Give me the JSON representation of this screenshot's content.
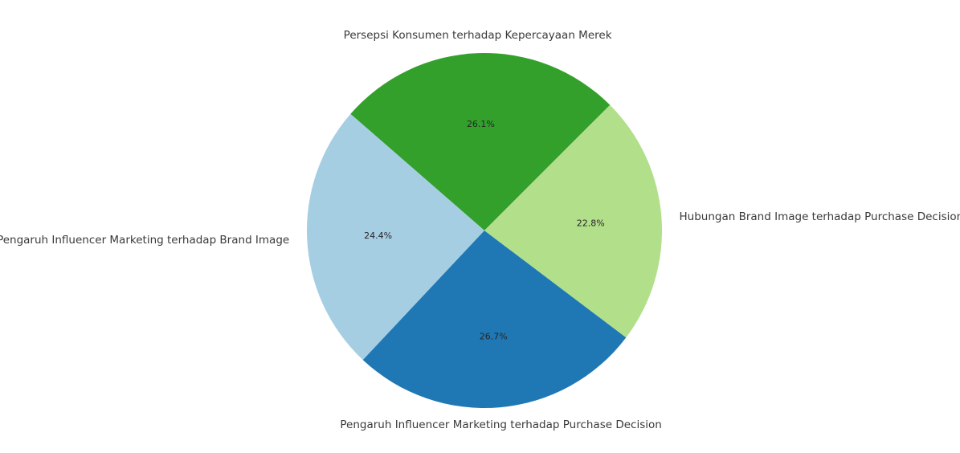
{
  "chart_data": {
    "type": "pie",
    "title": "",
    "slices": [
      {
        "label": "Persepsi Konsumen terhadap Kepercayaan Merek",
        "value": 26.1,
        "pct_label": "26.1%",
        "color": "#33a02c"
      },
      {
        "label": "Pengaruh Influencer Marketing terhadap Brand Image",
        "value": 24.4,
        "pct_label": "24.4%",
        "color": "#a6cee3"
      },
      {
        "label": "Pengaruh Influencer Marketing terhadap Purchase Decision",
        "value": 26.7,
        "pct_label": "26.7%",
        "color": "#1f78b4"
      },
      {
        "label": "Hubungan Brand Image terhadap Purchase Decision",
        "value": 22.8,
        "pct_label": "22.8%",
        "color": "#b2df8a"
      }
    ],
    "start_angle_deg": 45,
    "direction": "counterclockwise",
    "legend": "none"
  }
}
